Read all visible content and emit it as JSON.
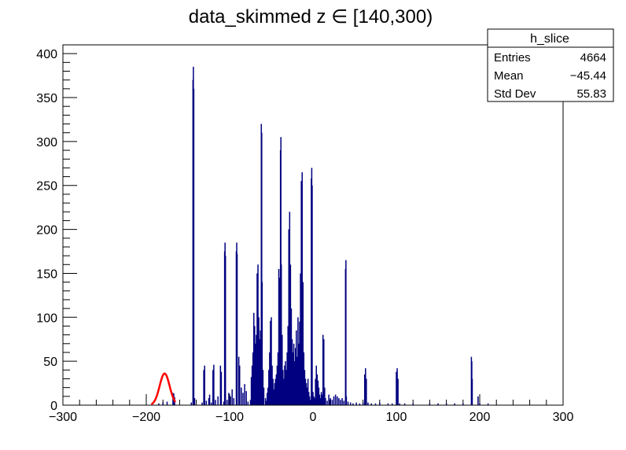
{
  "colors": {
    "histogram": "#000080",
    "fit": "#ff0000",
    "axis": "#000000",
    "background": "#ffffff"
  },
  "stats_box": {
    "name": "h_slice",
    "rows": [
      {
        "label": "Entries",
        "value": "4664"
      },
      {
        "label": "Mean",
        "value": "−45.44"
      },
      {
        "label": "Std Dev",
        "value": "55.83"
      }
    ]
  },
  "chart_data": {
    "type": "histogram",
    "title": "data_skimmed z  ∈ [140,300)",
    "xlabel": "",
    "ylabel": "",
    "xlim": [
      -300,
      300
    ],
    "ylim": [
      0,
      410
    ],
    "x_ticks": [
      -300,
      -200,
      -100,
      0,
      100,
      200,
      300
    ],
    "x_tick_labels": [
      "−300",
      "−200",
      "−100",
      "0",
      "100",
      "200",
      "300"
    ],
    "y_ticks": [
      0,
      50,
      100,
      150,
      200,
      250,
      300,
      350,
      400
    ],
    "y_tick_labels": [
      "0",
      "50",
      "100",
      "150",
      "200",
      "250",
      "300",
      "350",
      "400"
    ],
    "series": [
      {
        "type": "histogram",
        "points": [
          [
            -185,
            2
          ],
          [
            -180,
            3
          ],
          [
            -175,
            4
          ],
          [
            -168,
            14
          ],
          [
            -167,
            13
          ],
          [
            -166,
            9
          ],
          [
            -146,
            3
          ],
          [
            -144,
            370
          ],
          [
            -143.5,
            385
          ],
          [
            -143,
            360
          ],
          [
            -142,
            8
          ],
          [
            -133,
            3
          ],
          [
            -131,
            40
          ],
          [
            -130,
            45
          ],
          [
            -128,
            5
          ],
          [
            -125,
            8
          ],
          [
            -124,
            12
          ],
          [
            -122,
            3
          ],
          [
            -120,
            40
          ],
          [
            -119,
            46
          ],
          [
            -117,
            6
          ],
          [
            -114,
            10
          ],
          [
            -111,
            45
          ],
          [
            -110,
            38
          ],
          [
            -107,
            4
          ],
          [
            -106,
            175
          ],
          [
            -105.5,
            185
          ],
          [
            -105,
            170
          ],
          [
            -103,
            6
          ],
          [
            -101,
            14
          ],
          [
            -99,
            10
          ],
          [
            -97,
            18
          ],
          [
            -95,
            8
          ],
          [
            -92,
            175
          ],
          [
            -91.5,
            185
          ],
          [
            -91,
            172
          ],
          [
            -89,
            55
          ],
          [
            -88,
            45
          ],
          [
            -86,
            20
          ],
          [
            -84,
            14
          ],
          [
            -82,
            24
          ],
          [
            -80,
            16
          ],
          [
            -78,
            4
          ],
          [
            -75,
            6
          ],
          [
            -74,
            32
          ],
          [
            -73,
            45
          ],
          [
            -72,
            60
          ],
          [
            -71,
            105
          ],
          [
            -70,
            90
          ],
          [
            -69,
            70
          ],
          [
            -68,
            80
          ],
          [
            -67,
            150
          ],
          [
            -66,
            160
          ],
          [
            -65,
            100
          ],
          [
            -64,
            75
          ],
          [
            -63,
            85
          ],
          [
            -62,
            320
          ],
          [
            -61.5,
            310
          ],
          [
            -61,
            140
          ],
          [
            -60,
            40
          ],
          [
            -59,
            20
          ],
          [
            -57,
            8
          ],
          [
            -56,
            5
          ],
          [
            -55,
            14
          ],
          [
            -54,
            20
          ],
          [
            -53,
            40
          ],
          [
            -52,
            60
          ],
          [
            -51,
            96
          ],
          [
            -50,
            100
          ],
          [
            -49,
            45
          ],
          [
            -48,
            30
          ],
          [
            -47,
            18
          ],
          [
            -46,
            25
          ],
          [
            -45,
            30
          ],
          [
            -44,
            35
          ],
          [
            -43,
            45
          ],
          [
            -42,
            60
          ],
          [
            -41,
            155
          ],
          [
            -40,
            145
          ],
          [
            -39,
            290
          ],
          [
            -38.5,
            305
          ],
          [
            -38,
            160
          ],
          [
            -37,
            80
          ],
          [
            -36,
            40
          ],
          [
            -35,
            30
          ],
          [
            -34,
            45
          ],
          [
            -33,
            50
          ],
          [
            -32,
            40
          ],
          [
            -31,
            60
          ],
          [
            -30,
            90
          ],
          [
            -29,
            200
          ],
          [
            -28,
            220
          ],
          [
            -27,
            160
          ],
          [
            -26,
            110
          ],
          [
            -25,
            75
          ],
          [
            -24,
            60
          ],
          [
            -23,
            70
          ],
          [
            -22,
            50
          ],
          [
            -21,
            65
          ],
          [
            -20,
            85
          ],
          [
            -19,
            55
          ],
          [
            -18,
            100
          ],
          [
            -17,
            70
          ],
          [
            -16,
            95
          ],
          [
            -15,
            150
          ],
          [
            -14,
            255
          ],
          [
            -13,
            265
          ],
          [
            -12,
            140
          ],
          [
            -11,
            60
          ],
          [
            -10,
            40
          ],
          [
            -9,
            30
          ],
          [
            -8,
            25
          ],
          [
            -7,
            20
          ],
          [
            -6,
            30
          ],
          [
            -5,
            15
          ],
          [
            -4,
            10
          ],
          [
            -3,
            6
          ],
          [
            -2,
            258
          ],
          [
            -1.5,
            270
          ],
          [
            -1,
            250
          ],
          [
            0,
            15
          ],
          [
            1,
            10
          ],
          [
            2,
            8
          ],
          [
            3,
            30
          ],
          [
            4,
            45
          ],
          [
            5,
            35
          ],
          [
            6,
            28
          ],
          [
            7,
            20
          ],
          [
            8,
            12
          ],
          [
            9,
            8
          ],
          [
            10,
            15
          ],
          [
            11,
            12
          ],
          [
            12,
            80
          ],
          [
            13,
            75
          ],
          [
            14,
            20
          ],
          [
            15,
            8
          ],
          [
            17,
            5
          ],
          [
            19,
            12
          ],
          [
            21,
            8
          ],
          [
            23,
            6
          ],
          [
            25,
            10
          ],
          [
            27,
            12
          ],
          [
            29,
            10
          ],
          [
            31,
            8
          ],
          [
            33,
            6
          ],
          [
            35,
            8
          ],
          [
            37,
            5
          ],
          [
            39,
            155
          ],
          [
            39.5,
            165
          ],
          [
            40,
            10
          ],
          [
            42,
            4
          ],
          [
            45,
            3
          ],
          [
            48,
            2
          ],
          [
            52,
            3
          ],
          [
            56,
            2
          ],
          [
            60,
            3
          ],
          [
            62,
            35
          ],
          [
            63,
            42
          ],
          [
            64,
            30
          ],
          [
            66,
            3
          ],
          [
            70,
            2
          ],
          [
            75,
            2
          ],
          [
            80,
            3
          ],
          [
            90,
            2
          ],
          [
            95,
            2
          ],
          [
            100,
            38
          ],
          [
            101,
            42
          ],
          [
            102,
            30
          ],
          [
            104,
            2
          ],
          [
            110,
            2
          ],
          [
            120,
            2
          ],
          [
            140,
            2
          ],
          [
            150,
            2
          ],
          [
            160,
            2
          ],
          [
            170,
            2
          ],
          [
            180,
            2
          ],
          [
            190,
            55
          ],
          [
            190.5,
            50
          ],
          [
            191,
            30
          ],
          [
            198,
            10
          ],
          [
            200,
            2
          ],
          [
            210,
            2
          ]
        ]
      },
      {
        "type": "gaussian-fit",
        "amplitude": 36,
        "mean": -178,
        "sigma": 6,
        "x_range": [
          -194,
          -165
        ]
      }
    ],
    "grid": false,
    "legend": "none"
  }
}
